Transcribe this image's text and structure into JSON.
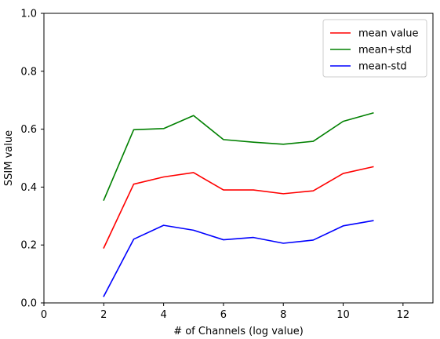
{
  "chart_data": {
    "type": "line",
    "title": "",
    "xlabel": "# of Channels (log value)",
    "ylabel": "SSIM value",
    "xlim": [
      0,
      13
    ],
    "ylim": [
      0,
      1
    ],
    "xticks": [
      "0",
      "2",
      "4",
      "6",
      "8",
      "10",
      "12"
    ],
    "yticks": [
      "0.0",
      "0.2",
      "0.4",
      "0.6",
      "0.8",
      "1.0"
    ],
    "grid": false,
    "legend_position": "upper right",
    "x": [
      2,
      3,
      4,
      5,
      6,
      7,
      8,
      9,
      10,
      11
    ],
    "series": [
      {
        "name": "mean value",
        "color": "#ff0000",
        "values": [
          0.19,
          0.41,
          0.435,
          0.45,
          0.39,
          0.39,
          0.377,
          0.387,
          0.447,
          0.47
        ]
      },
      {
        "name": "mean+std",
        "color": "#008000",
        "values": [
          0.355,
          0.598,
          0.602,
          0.647,
          0.564,
          0.555,
          0.548,
          0.558,
          0.627,
          0.656
        ]
      },
      {
        "name": "mean-std",
        "color": "#0000ff",
        "values": [
          0.023,
          0.22,
          0.268,
          0.251,
          0.218,
          0.226,
          0.206,
          0.217,
          0.266,
          0.284
        ]
      }
    ]
  }
}
